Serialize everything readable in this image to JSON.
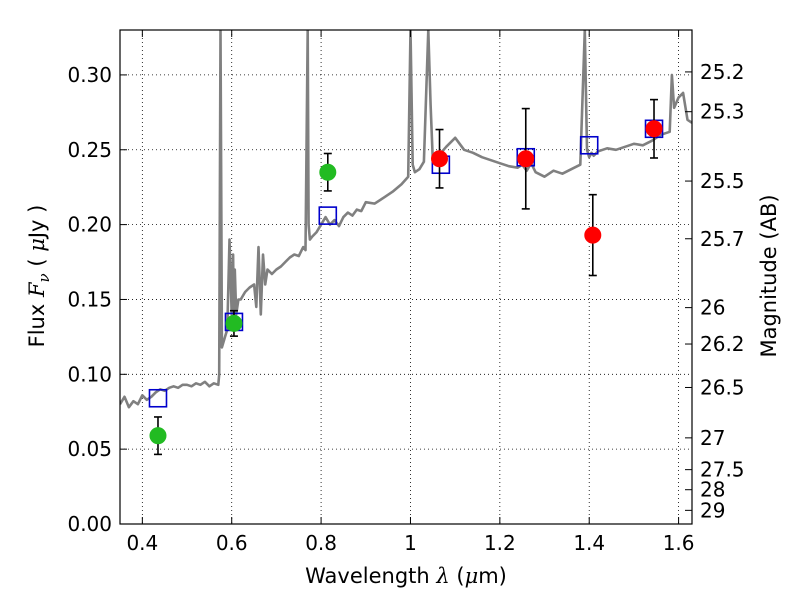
{
  "chart_data": {
    "type": "scatter",
    "xlabel": {
      "pre": "Wavelength ",
      "symbol": "λ",
      "post": " (",
      "unit_mu": "μ",
      "unit_rest": "m)"
    },
    "ylabel": {
      "pre": "Flux ",
      "symbol": "F",
      "sub": "ν",
      "post": " ( ",
      "unit_mu": "μ",
      "unit_rest": "Jy )"
    },
    "y2label": "Magnitude (AB)",
    "xlim": [
      0.35,
      1.63
    ],
    "ylim": [
      0.0,
      0.33
    ],
    "grid": true,
    "x_ticks": [
      {
        "value": 0.4,
        "label": "0.4"
      },
      {
        "value": 0.6,
        "label": "0.6"
      },
      {
        "value": 0.8,
        "label": "0.8"
      },
      {
        "value": 1.0,
        "label": "1"
      },
      {
        "value": 1.2,
        "label": "1.2"
      },
      {
        "value": 1.4,
        "label": "1.4"
      },
      {
        "value": 1.6,
        "label": "1.6"
      }
    ],
    "y_ticks": [
      {
        "value": 0.0,
        "label": "0.00"
      },
      {
        "value": 0.05,
        "label": "0.05"
      },
      {
        "value": 0.1,
        "label": "0.10"
      },
      {
        "value": 0.15,
        "label": "0.15"
      },
      {
        "value": 0.2,
        "label": "0.20"
      },
      {
        "value": 0.25,
        "label": "0.25"
      },
      {
        "value": 0.3,
        "label": "0.30"
      }
    ],
    "magnitude_ticks": [
      {
        "value": 25.2,
        "label": "25.2"
      },
      {
        "value": 25.3,
        "label": "25.3"
      },
      {
        "value": 25.5,
        "label": "25.5"
      },
      {
        "value": 25.7,
        "label": "25.7"
      },
      {
        "value": 26.0,
        "label": "26"
      },
      {
        "value": 26.2,
        "label": "26.2"
      },
      {
        "value": 26.5,
        "label": "26.5"
      },
      {
        "value": 27.0,
        "label": "27"
      },
      {
        "value": 27.5,
        "label": "27.5"
      },
      {
        "value": 28.0,
        "label": "28"
      },
      {
        "value": 29.0,
        "label": "29"
      }
    ],
    "series": [
      {
        "type": "line",
        "color": "#808080",
        "x": [
          0.35,
          0.36,
          0.37,
          0.38,
          0.39,
          0.4,
          0.41,
          0.42,
          0.43,
          0.44,
          0.45,
          0.46,
          0.47,
          0.48,
          0.49,
          0.5,
          0.51,
          0.52,
          0.53,
          0.54,
          0.55,
          0.56,
          0.57,
          0.572,
          0.575,
          0.577,
          0.578,
          0.58,
          0.585,
          0.59,
          0.595,
          0.6,
          0.603,
          0.605,
          0.607,
          0.61,
          0.615,
          0.62,
          0.63,
          0.64,
          0.65,
          0.655,
          0.66,
          0.665,
          0.67,
          0.675,
          0.68,
          0.69,
          0.7,
          0.71,
          0.72,
          0.73,
          0.74,
          0.75,
          0.76,
          0.765,
          0.77,
          0.772,
          0.775,
          0.78,
          0.79,
          0.8,
          0.81,
          0.82,
          0.83,
          0.84,
          0.85,
          0.86,
          0.87,
          0.88,
          0.89,
          0.9,
          0.92,
          0.94,
          0.96,
          0.98,
          0.995,
          1.0,
          1.005,
          1.01,
          1.02,
          1.03,
          1.04,
          1.045,
          1.05,
          1.06,
          1.08,
          1.1,
          1.12,
          1.14,
          1.16,
          1.18,
          1.2,
          1.22,
          1.24,
          1.25,
          1.26,
          1.27,
          1.28,
          1.3,
          1.32,
          1.34,
          1.36,
          1.38,
          1.39,
          1.395,
          1.4,
          1.405,
          1.41,
          1.42,
          1.44,
          1.46,
          1.48,
          1.5,
          1.52,
          1.54,
          1.56,
          1.58,
          1.585,
          1.59,
          1.6,
          1.61,
          1.62,
          1.63
        ],
        "y": [
          0.08,
          0.085,
          0.078,
          0.082,
          0.08,
          0.086,
          0.083,
          0.085,
          0.088,
          0.09,
          0.089,
          0.091,
          0.092,
          0.091,
          0.093,
          0.093,
          0.092,
          0.094,
          0.093,
          0.095,
          0.092,
          0.094,
          0.093,
          0.1,
          0.33,
          0.2,
          0.118,
          0.12,
          0.125,
          0.13,
          0.19,
          0.14,
          0.18,
          0.13,
          0.17,
          0.14,
          0.15,
          0.15,
          0.155,
          0.158,
          0.16,
          0.145,
          0.185,
          0.14,
          0.18,
          0.16,
          0.17,
          0.167,
          0.17,
          0.172,
          0.175,
          0.178,
          0.18,
          0.179,
          0.185,
          0.183,
          0.33,
          0.2,
          0.19,
          0.192,
          0.195,
          0.2,
          0.205,
          0.2,
          0.203,
          0.199,
          0.205,
          0.208,
          0.206,
          0.21,
          0.209,
          0.215,
          0.214,
          0.218,
          0.222,
          0.227,
          0.232,
          0.33,
          0.24,
          0.235,
          0.237,
          0.242,
          0.33,
          0.28,
          0.243,
          0.245,
          0.252,
          0.258,
          0.25,
          0.248,
          0.245,
          0.243,
          0.241,
          0.239,
          0.238,
          0.24,
          0.236,
          0.241,
          0.235,
          0.232,
          0.236,
          0.234,
          0.237,
          0.24,
          0.33,
          0.25,
          0.245,
          0.248,
          0.246,
          0.249,
          0.251,
          0.25,
          0.252,
          0.254,
          0.253,
          0.256,
          0.26,
          0.262,
          0.3,
          0.278,
          0.285,
          0.288,
          0.27,
          0.268
        ]
      },
      {
        "type": "open-square",
        "color": "#0000cc",
        "x": [
          0.435,
          0.605,
          0.815,
          1.068,
          1.258,
          1.4,
          1.545
        ],
        "y": [
          0.084,
          0.135,
          0.206,
          0.24,
          0.245,
          0.253,
          0.264
        ]
      },
      {
        "type": "point",
        "color": "#22bb22",
        "x": [
          0.435,
          0.605,
          0.815
        ],
        "y": [
          0.059,
          0.134,
          0.235
        ],
        "err": [
          0.0125,
          0.0085,
          0.0125
        ]
      },
      {
        "type": "point",
        "color": "#ff0000",
        "x": [
          1.065,
          1.258,
          1.408,
          1.545
        ],
        "y": [
          0.244,
          0.244,
          0.193,
          0.264
        ],
        "err": [
          0.0195,
          0.0335,
          0.027,
          0.0195
        ]
      }
    ]
  }
}
